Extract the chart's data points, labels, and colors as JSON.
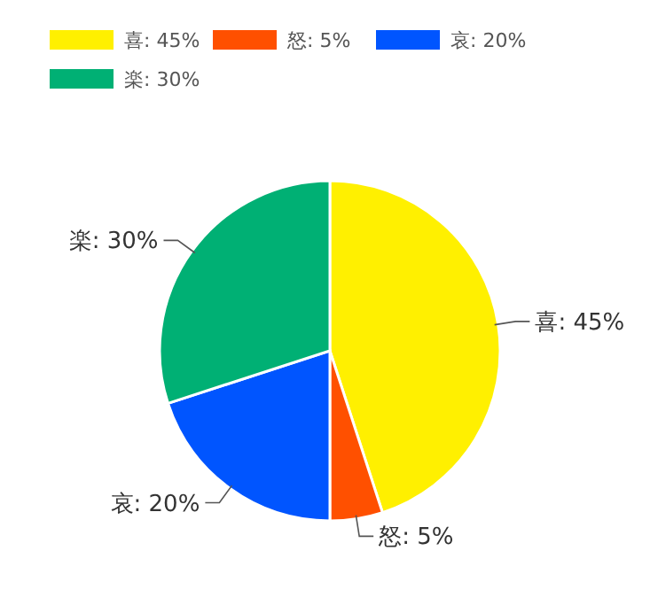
{
  "chart_data": {
    "type": "pie",
    "categories": [
      "喜",
      "怒",
      "哀",
      "楽"
    ],
    "values": [
      45,
      5,
      20,
      30
    ],
    "value_labels": [
      "45%",
      "5%",
      "20%",
      "30%"
    ],
    "colors": [
      "#fff000",
      "#ff5000",
      "#0055ff",
      "#00b074"
    ],
    "legend": "top left"
  }
}
